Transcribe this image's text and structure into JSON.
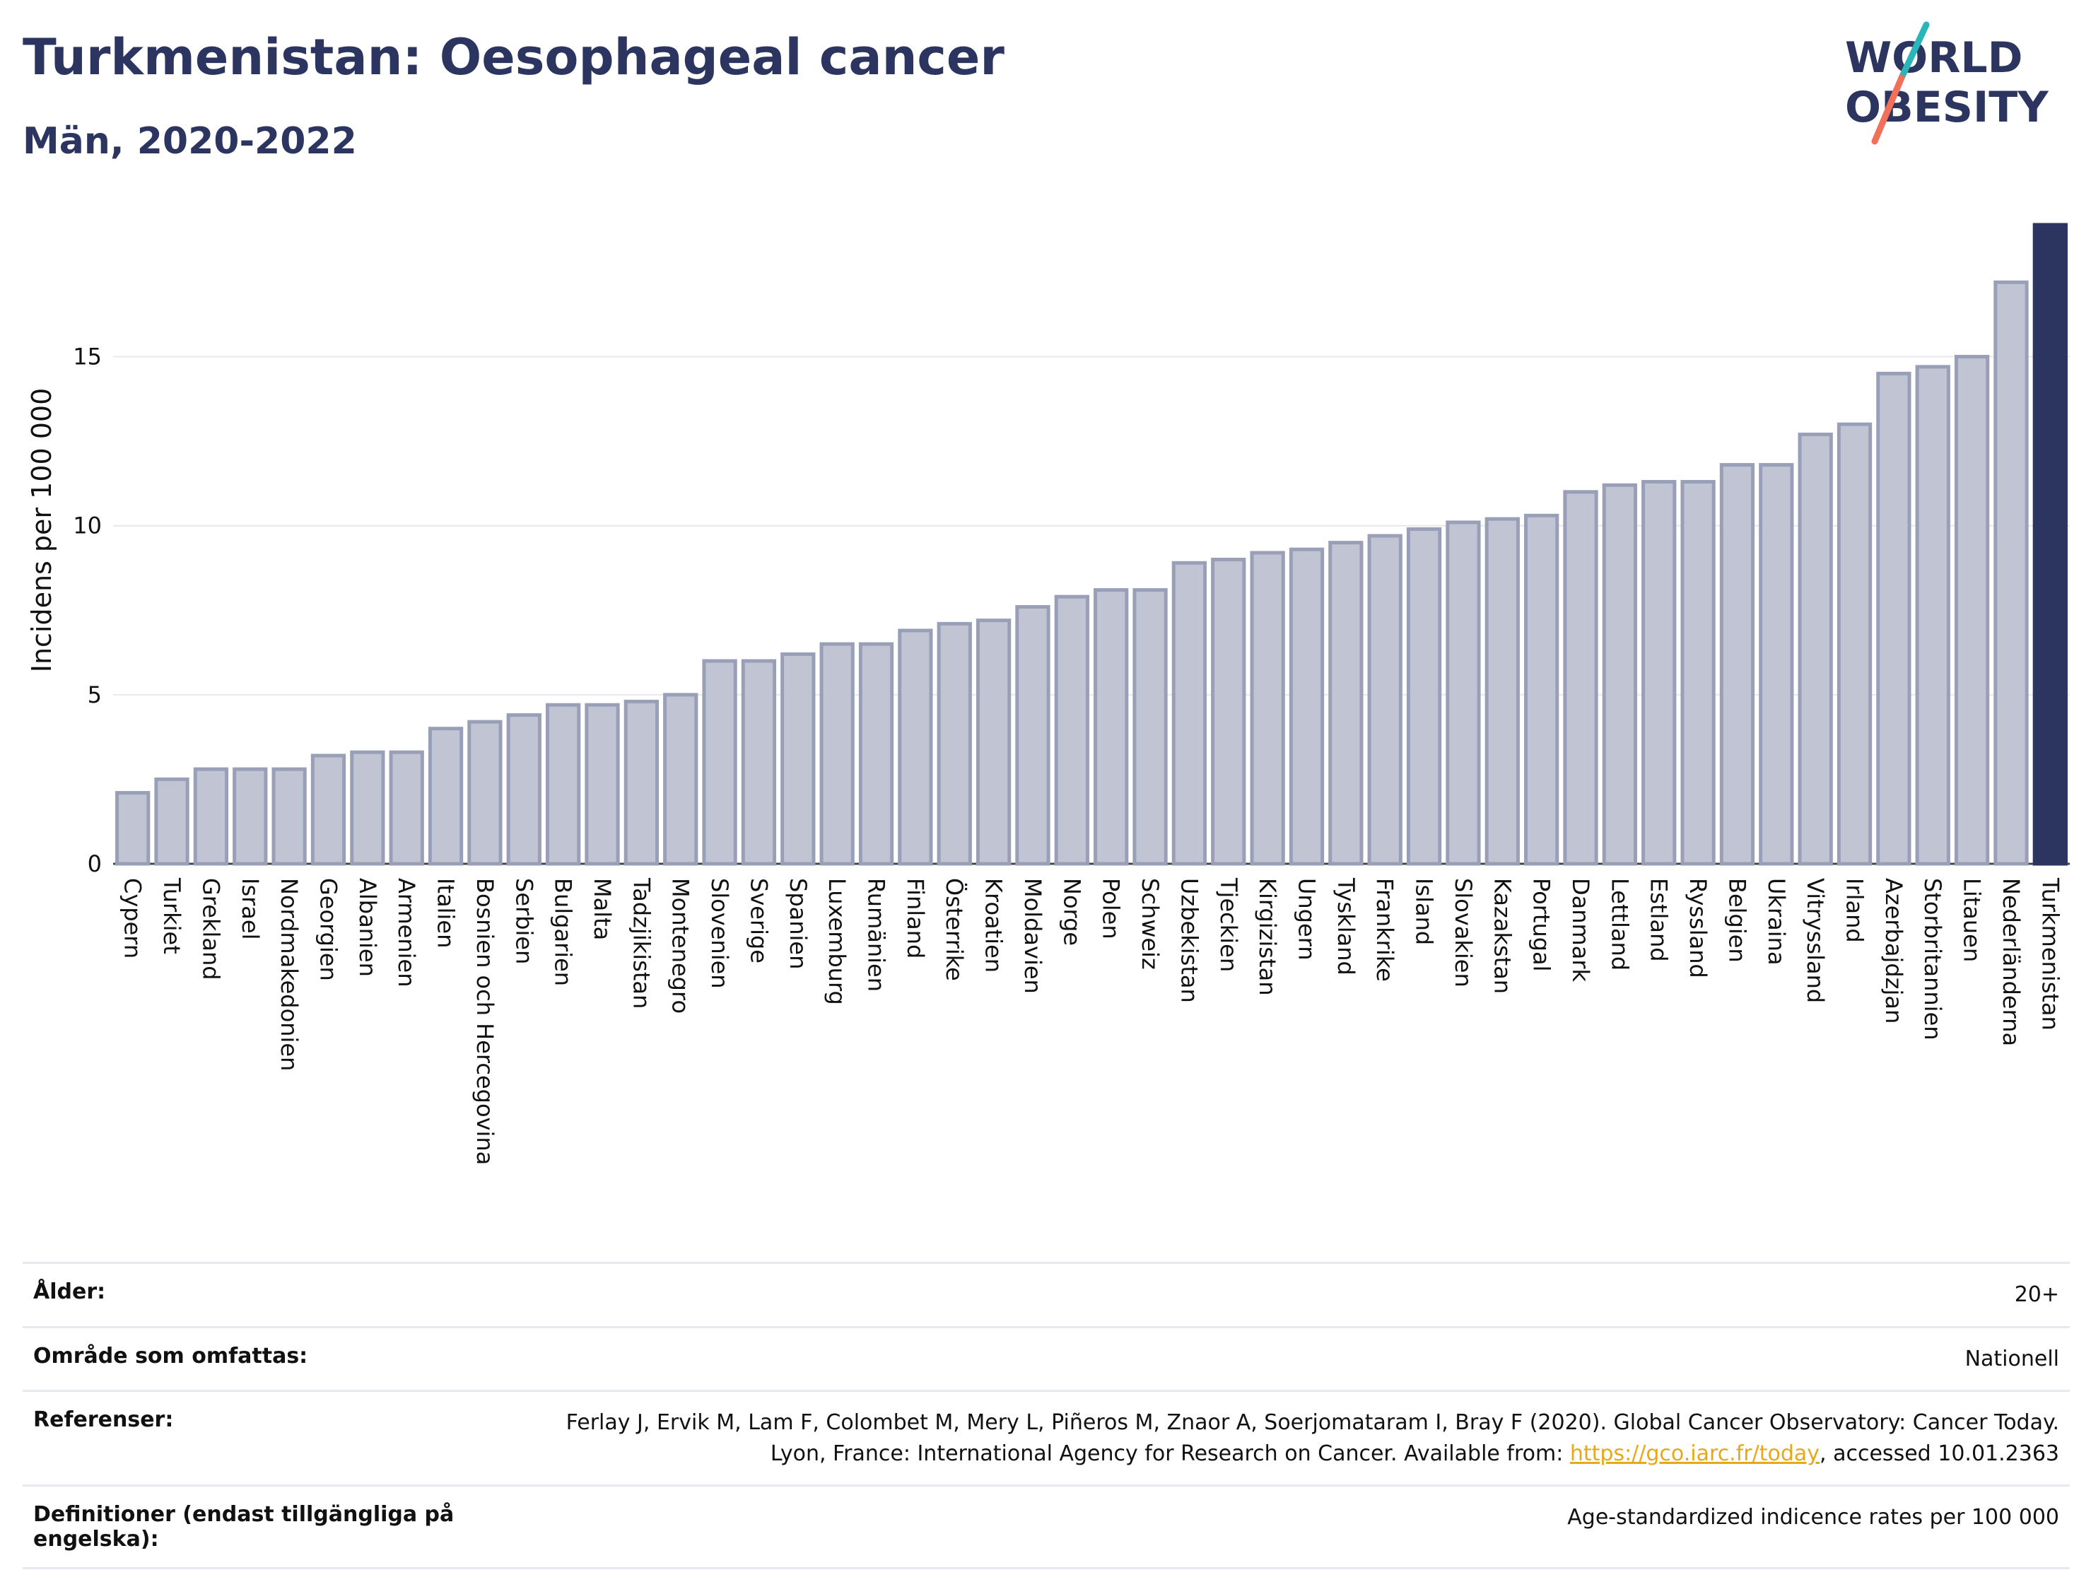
{
  "header": {
    "title": "Turkmenistan: Oesophageal cancer",
    "subtitle": "Män, 2020-2022"
  },
  "logo": {
    "line1": "WORLD",
    "line2": "OBESITY",
    "colors": {
      "text": "#2b3560",
      "slash_top": "#2bb5b8",
      "slash_bottom": "#f0705a"
    }
  },
  "colors": {
    "bar_fill": "#c0c4d3",
    "bar_stroke": "#9a9fb8",
    "highlight": "#2b3560",
    "grid": "#e6e8ee"
  },
  "chart_data": {
    "type": "bar",
    "ylabel": "Incidens per 100 000",
    "ylim": [
      0,
      18.9
    ],
    "yticks": [
      0,
      5,
      10,
      15
    ],
    "grid": true,
    "highlight": "Turkmenistan",
    "categories": [
      "Cypern",
      "Turkiet",
      "Grekland",
      "Israel",
      "Nordmakedonien",
      "Georgien",
      "Albanien",
      "Armenien",
      "Italien",
      "Bosnien och Hercegovina",
      "Serbien",
      "Bulgarien",
      "Malta",
      "Tadzjikistan",
      "Montenegro",
      "Slovenien",
      "Sverige",
      "Spanien",
      "Luxemburg",
      "Rumänien",
      "Finland",
      "Österrike",
      "Kroatien",
      "Moldavien",
      "Norge",
      "Polen",
      "Schweiz",
      "Uzbekistan",
      "Tjeckien",
      "Kirgizistan",
      "Ungern",
      "Tyskland",
      "Frankrike",
      "Island",
      "Slovakien",
      "Kazakstan",
      "Portugal",
      "Danmark",
      "Lettland",
      "Estland",
      "Ryssland",
      "Belgien",
      "Ukraina",
      "Vitryssland",
      "Irland",
      "Azerbajdzjan",
      "Storbritannien",
      "Litauen",
      "Nederländerna",
      "Turkmenistan"
    ],
    "values": [
      2.1,
      2.5,
      2.8,
      2.8,
      2.8,
      3.2,
      3.3,
      3.3,
      4.0,
      4.2,
      4.4,
      4.7,
      4.7,
      4.8,
      5.0,
      6.0,
      6.0,
      6.2,
      6.5,
      6.5,
      6.9,
      7.1,
      7.2,
      7.6,
      7.9,
      8.1,
      8.1,
      8.9,
      9.0,
      9.2,
      9.3,
      9.5,
      9.7,
      9.9,
      10.1,
      10.2,
      10.3,
      11.0,
      11.2,
      11.3,
      11.3,
      11.8,
      11.8,
      12.7,
      13.0,
      14.5,
      14.7,
      15.0,
      17.2,
      18.9
    ]
  },
  "info": {
    "age_label": "Ålder:",
    "age_value": "20+",
    "area_label": "Område som omfattas:",
    "area_value": "Nationell",
    "refs_label": "Referenser:",
    "refs_value_1": "Ferlay J, Ervik M, Lam F, Colombet M, Mery L, Piñeros M, Znaor A, Soerjomataram I, Bray F (2020). Global Cancer Observatory: Cancer Today. Lyon, France: International Agency for Research on Cancer. Available from: ",
    "refs_link": "https://gco.iarc.fr/today",
    "refs_value_2": ", accessed 10.01.2363",
    "defs_label": "Definitioner (endast tillgängliga på engelska):",
    "defs_value": "Age-standardized indicence rates per 100 000"
  }
}
